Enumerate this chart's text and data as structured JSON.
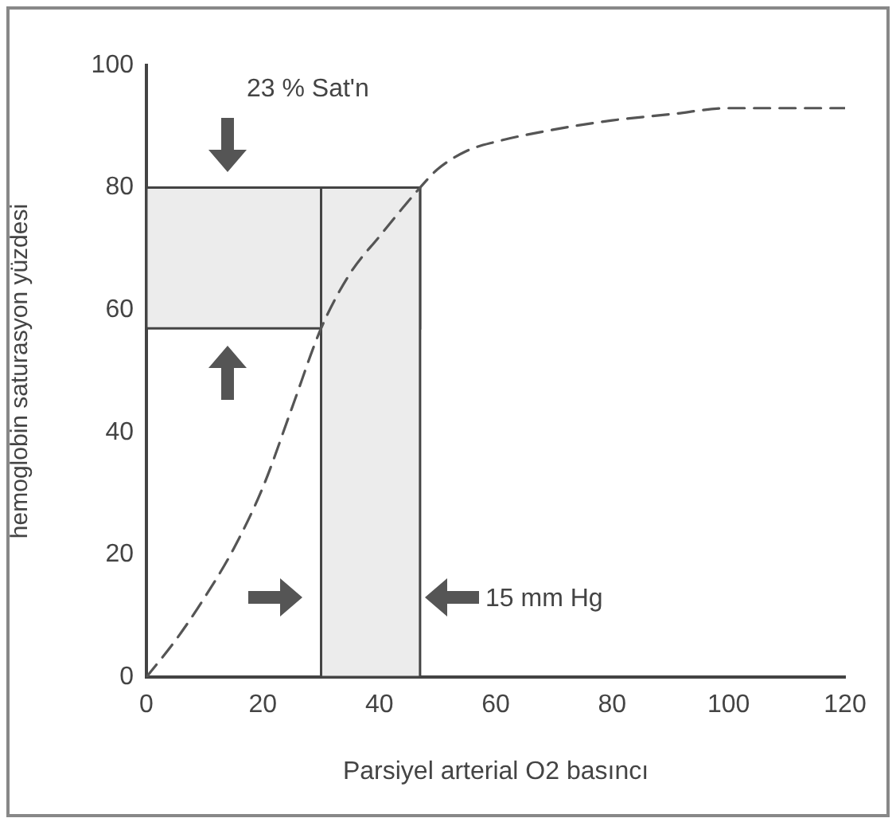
{
  "chart_data": {
    "type": "line",
    "xlabel": "Parsiyel arterial O2 basıncı",
    "ylabel": "hemoglobin saturasyon yüzdesi",
    "x": [
      0,
      5,
      10,
      15,
      20,
      25,
      30,
      35,
      40,
      47,
      50,
      55,
      60,
      70,
      80,
      90,
      100,
      110,
      120
    ],
    "series": [
      {
        "color": "#555555",
        "values": [
          0,
          6,
          13,
          21,
          31,
          44,
          57,
          66,
          72,
          80,
          83,
          86,
          87.5,
          89.5,
          91,
          92,
          93,
          93,
          93
        ]
      }
    ],
    "xlim": [
      0,
      120
    ],
    "ylim": [
      0,
      100
    ],
    "xticks": [
      0,
      20,
      40,
      60,
      80,
      100,
      120
    ],
    "yticks": [
      0,
      20,
      40,
      60,
      80,
      100
    ],
    "bands": [
      {
        "axis": "y",
        "from": 57,
        "to": 80,
        "color": "#ececec"
      },
      {
        "axis": "x",
        "from": 30,
        "to": 47,
        "color": "#ececec"
      }
    ],
    "annotations": [
      "23 % Sat'n",
      "15 mm Hg"
    ],
    "grid": false,
    "legend": false,
    "marker": "none",
    "line_style": "dashed"
  }
}
